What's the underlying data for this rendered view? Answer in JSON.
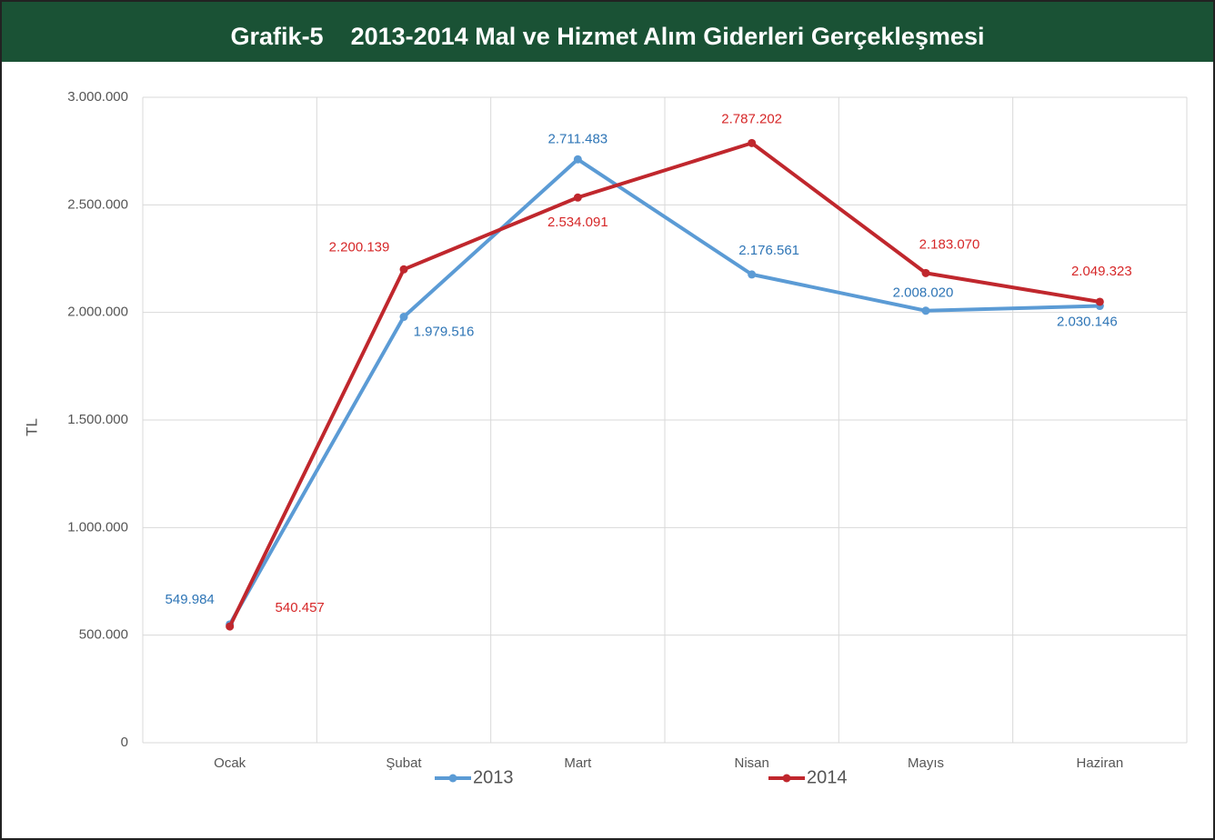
{
  "chart_data": {
    "type": "line",
    "title": "Grafik-5    2013-2014 Mal ve Hizmet Alım Giderleri Gerçekleşmesi",
    "y_label": "TL",
    "categories": [
      "Ocak",
      "Şubat",
      "Mart",
      "Nisan",
      "Mayıs",
      "Haziran"
    ],
    "series": [
      {
        "name": "2013",
        "color": "#5b9bd5",
        "values": [
          549984,
          1979516,
          2711483,
          2176561,
          2008020,
          2030146
        ],
        "value_labels": [
          "549.984",
          "1.979.516",
          "2.711.483",
          "2.176.561",
          "2.008.020",
          "2.030.146"
        ]
      },
      {
        "name": "2014",
        "color": "#c0272d",
        "values": [
          540457,
          2200139,
          2534091,
          2787202,
          2183070,
          2049323
        ],
        "value_labels": [
          "540.457",
          "2.200.139",
          "2.534.091",
          "2.787.202",
          "2.183.070",
          "2.049.323"
        ]
      }
    ],
    "ylim": [
      0,
      3000000
    ],
    "yticks": [
      0,
      {
        "value": 500000,
        "label": "500.000"
      },
      {
        "value": 1000000,
        "label": "1.000.000"
      },
      {
        "value": 1500000,
        "label": "1.500.000"
      },
      {
        "value": 2000000,
        "label": "2.000.000"
      },
      {
        "value": 2500000,
        "label": "2.500.000"
      },
      {
        "value": 3000000,
        "label": "3.000.000"
      }
    ],
    "grid": true,
    "legend": "bottom"
  }
}
